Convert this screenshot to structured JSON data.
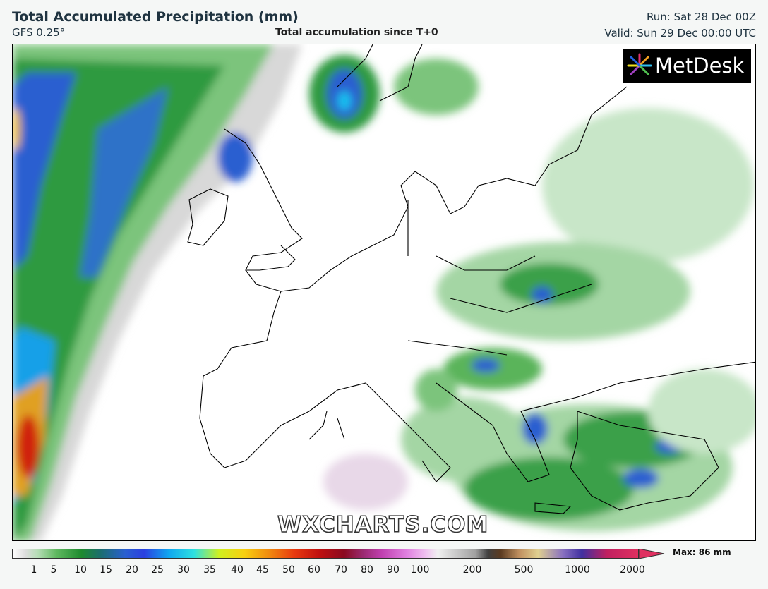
{
  "header": {
    "title": "Total Accumulated Precipitation (mm)",
    "model": "GFS 0.25°",
    "subtitle": "Total accumulation since T+0",
    "run": "Run: Sat 28 Dec 00Z",
    "valid": "Valid: Sun 29 Dec 00:00 UTC"
  },
  "logo": "MetDesk",
  "watermark": "WXCHARTS.COM",
  "legend": {
    "ticks": [
      1,
      5,
      10,
      15,
      20,
      25,
      30,
      35,
      40,
      45,
      50,
      60,
      70,
      80,
      90,
      100,
      200,
      500,
      1000,
      2000
    ],
    "max": "Max: 86 mm"
  }
}
